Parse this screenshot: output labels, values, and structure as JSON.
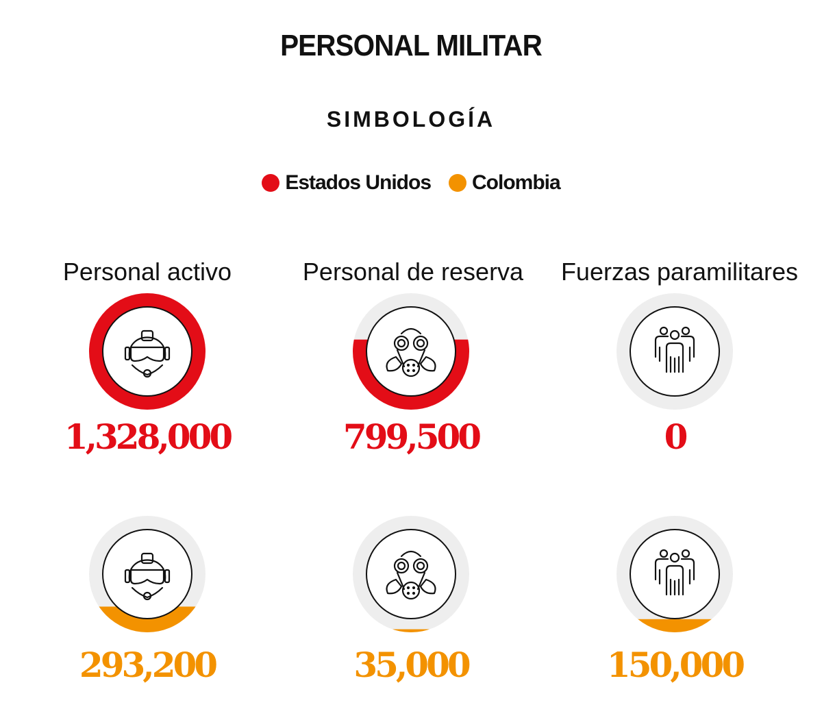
{
  "title": "PERSONAL MILITAR",
  "subtitle": "SIMBOLOGÍA",
  "legend": [
    {
      "label": "Estados Unidos",
      "color": "#e30d17"
    },
    {
      "label": "Colombia",
      "color": "#f39200"
    }
  ],
  "chart_data": {
    "type": "gauge",
    "title": "PERSONAL MILITAR",
    "categories": [
      "Personal activo",
      "Personal de reserva",
      "Fuerzas paramilitares"
    ],
    "max": 1328000,
    "series": [
      {
        "name": "Estados Unidos",
        "color": "#e30d17",
        "values": [
          1328000,
          799500,
          0
        ],
        "labels": [
          "1,328,000",
          "799,500",
          "0"
        ]
      },
      {
        "name": "Colombia",
        "color": "#f39200",
        "values": [
          293200,
          35000,
          150000
        ],
        "labels": [
          "293,200",
          "35,000",
          "150,000"
        ]
      }
    ],
    "icons": [
      "pilot-helmet-icon",
      "gas-mask-icon",
      "group-people-icon"
    ]
  }
}
